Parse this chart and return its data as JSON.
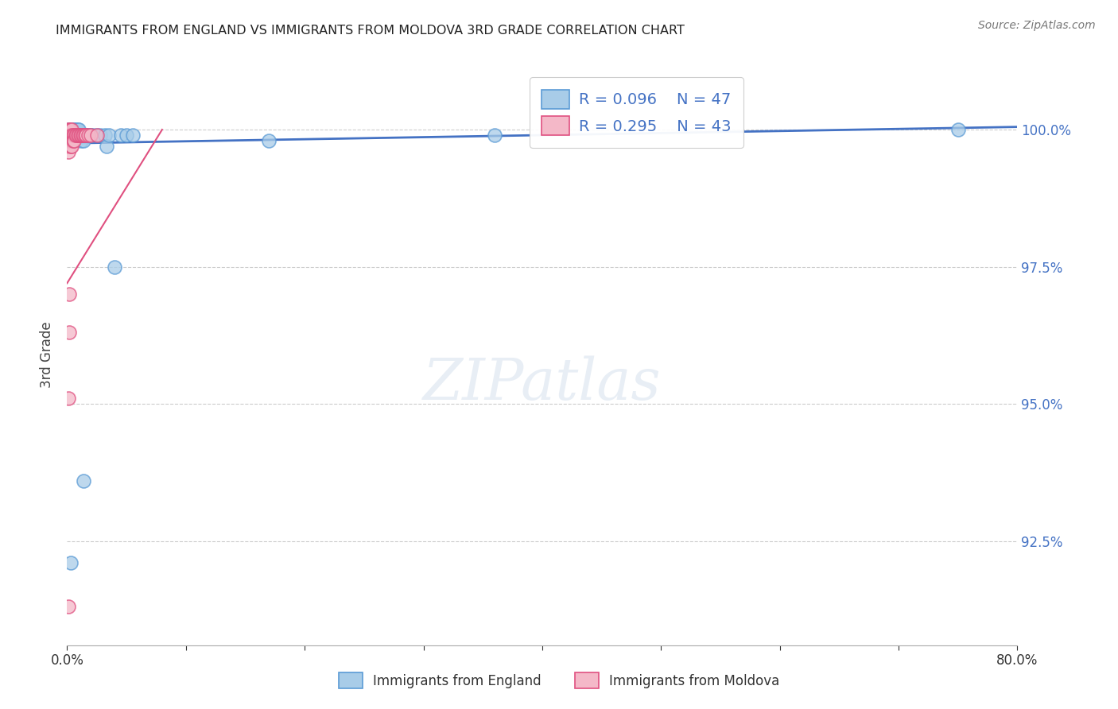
{
  "title": "IMMIGRANTS FROM ENGLAND VS IMMIGRANTS FROM MOLDOVA 3RD GRADE CORRELATION CHART",
  "source": "Source: ZipAtlas.com",
  "ylabel": "3rd Grade",
  "ytick_labels": [
    "100.0%",
    "97.5%",
    "95.0%",
    "92.5%"
  ],
  "ytick_values": [
    1.0,
    0.975,
    0.95,
    0.925
  ],
  "xlim": [
    0.0,
    0.8
  ],
  "ylim": [
    0.906,
    1.012
  ],
  "england_R": 0.096,
  "england_N": 47,
  "moldova_R": 0.295,
  "moldova_N": 43,
  "england_color": "#a8cce8",
  "moldova_color": "#f4b8c8",
  "england_edge_color": "#5b9bd5",
  "moldova_edge_color": "#e05080",
  "england_line_color": "#4472c4",
  "moldova_line_color": "#e05080",
  "right_axis_color": "#4472c4",
  "england_x": [
    0.001,
    0.001,
    0.002,
    0.002,
    0.003,
    0.003,
    0.003,
    0.004,
    0.004,
    0.004,
    0.005,
    0.005,
    0.006,
    0.006,
    0.007,
    0.007,
    0.008,
    0.008,
    0.009,
    0.009,
    0.01,
    0.01,
    0.011,
    0.012,
    0.013,
    0.014,
    0.015,
    0.016,
    0.017,
    0.018,
    0.019,
    0.02,
    0.022,
    0.025,
    0.028,
    0.032,
    0.033,
    0.035,
    0.04,
    0.045,
    0.05,
    0.055,
    0.17,
    0.36,
    0.75,
    0.014,
    0.003
  ],
  "england_y": [
    1.0,
    0.999,
    1.0,
    0.999,
    1.0,
    0.999,
    0.998,
    1.0,
    0.999,
    0.998,
    1.0,
    0.999,
    1.0,
    0.999,
    1.0,
    0.999,
    1.0,
    0.999,
    1.0,
    0.999,
    1.0,
    0.999,
    0.999,
    0.998,
    0.999,
    0.998,
    0.999,
    0.999,
    0.999,
    0.999,
    0.999,
    0.999,
    0.999,
    0.999,
    0.999,
    0.999,
    0.997,
    0.999,
    0.975,
    0.999,
    0.999,
    0.999,
    0.998,
    0.999,
    1.0,
    0.936,
    0.921
  ],
  "moldova_x": [
    0.001,
    0.001,
    0.001,
    0.001,
    0.001,
    0.001,
    0.001,
    0.001,
    0.001,
    0.002,
    0.002,
    0.002,
    0.002,
    0.002,
    0.003,
    0.003,
    0.003,
    0.003,
    0.004,
    0.004,
    0.004,
    0.004,
    0.005,
    0.005,
    0.006,
    0.006,
    0.007,
    0.008,
    0.009,
    0.01,
    0.011,
    0.012,
    0.013,
    0.014,
    0.015,
    0.016,
    0.018,
    0.02,
    0.025,
    0.002,
    0.002,
    0.001,
    0.001
  ],
  "moldova_y": [
    1.0,
    0.999,
    0.999,
    0.998,
    0.998,
    0.998,
    0.997,
    0.997,
    0.996,
    1.0,
    0.999,
    0.999,
    0.998,
    0.998,
    1.0,
    0.999,
    0.998,
    0.997,
    1.0,
    0.999,
    0.998,
    0.997,
    0.999,
    0.998,
    0.999,
    0.998,
    0.999,
    0.999,
    0.999,
    0.999,
    0.999,
    0.999,
    0.999,
    0.999,
    0.999,
    0.999,
    0.999,
    0.999,
    0.999,
    0.97,
    0.963,
    0.951,
    0.913
  ],
  "england_trend_x": [
    0.0,
    0.8
  ],
  "england_trend_y": [
    0.9975,
    1.0005
  ],
  "moldova_trend_x": [
    0.0,
    0.08
  ],
  "moldova_trend_y": [
    0.972,
    1.0
  ]
}
